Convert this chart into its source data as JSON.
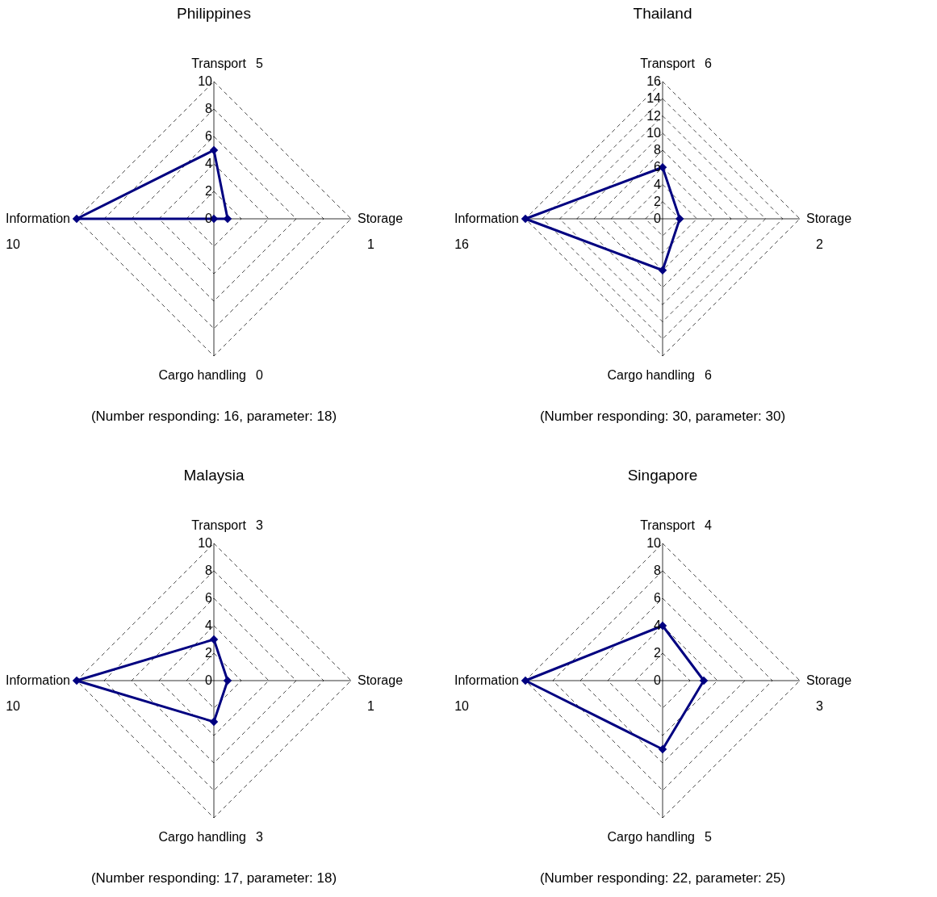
{
  "chart_data": [
    {
      "type": "radar",
      "title": "Philippines",
      "categories": [
        "Transport",
        "Storage",
        "Cargo handling",
        "Information"
      ],
      "series": [
        {
          "color": "#000080",
          "values": [
            5,
            1,
            0,
            10
          ]
        }
      ],
      "ylim": [
        0,
        10
      ],
      "yticks": [
        0,
        2,
        4,
        6,
        8,
        10
      ],
      "grid": true,
      "marker": "diamond",
      "annotations": [
        "5",
        "1",
        "0",
        "10",
        "(Number responding: 16, parameter: 18)"
      ]
    },
    {
      "type": "radar",
      "title": "Thailand",
      "categories": [
        "Transport",
        "Storage",
        "Cargo handling",
        "Information"
      ],
      "series": [
        {
          "color": "#000080",
          "values": [
            6,
            2,
            6,
            16
          ]
        }
      ],
      "ylim": [
        0,
        16
      ],
      "yticks": [
        0,
        2,
        4,
        6,
        8,
        10,
        12,
        14,
        16
      ],
      "grid": true,
      "marker": "diamond",
      "annotations": [
        "6",
        "2",
        "6",
        "16",
        "(Number responding: 30, parameter: 30)"
      ]
    },
    {
      "type": "radar",
      "title": "Malaysia",
      "categories": [
        "Transport",
        "Storage",
        "Cargo handling",
        "Information"
      ],
      "series": [
        {
          "color": "#000080",
          "values": [
            3,
            1,
            3,
            10
          ]
        }
      ],
      "ylim": [
        0,
        10
      ],
      "yticks": [
        0,
        2,
        4,
        6,
        8,
        10
      ],
      "grid": true,
      "marker": "diamond",
      "annotations": [
        "3",
        "1",
        "3",
        "10",
        "(Number responding: 17, parameter: 18)"
      ]
    },
    {
      "type": "radar",
      "title": "Singapore",
      "categories": [
        "Transport",
        "Storage",
        "Cargo handling",
        "Information"
      ],
      "series": [
        {
          "color": "#000080",
          "values": [
            4,
            3,
            5,
            10
          ]
        }
      ],
      "ylim": [
        0,
        10
      ],
      "yticks": [
        0,
        2,
        4,
        6,
        8,
        10
      ],
      "grid": true,
      "marker": "diamond",
      "annotations": [
        "4",
        "3",
        "5",
        "10",
        "(Number responding: 22, parameter: 25)"
      ]
    }
  ]
}
